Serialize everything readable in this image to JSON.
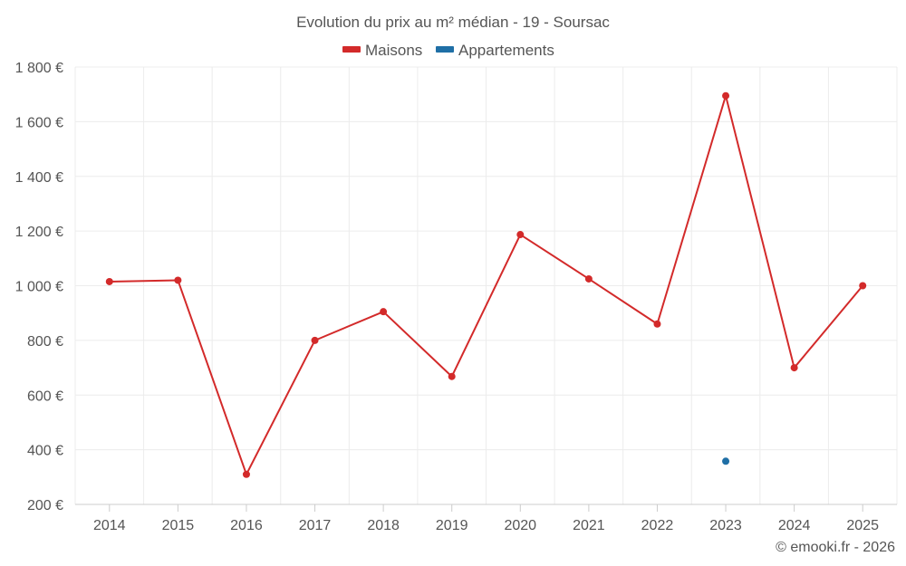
{
  "chart_data": {
    "type": "line",
    "title": "Evolution du prix au m² médian - 19 - Soursac",
    "categories": [
      "2014",
      "2015",
      "2016",
      "2017",
      "2018",
      "2019",
      "2020",
      "2021",
      "2022",
      "2023",
      "2024",
      "2025"
    ],
    "series": [
      {
        "name": "Maisons",
        "color": "#d32a2a",
        "values": [
          1015,
          1020,
          310,
          800,
          905,
          668,
          1187,
          1025,
          860,
          1695,
          700,
          1000
        ]
      },
      {
        "name": "Appartements",
        "color": "#1f6fa6",
        "values": [
          null,
          null,
          null,
          null,
          null,
          null,
          null,
          null,
          null,
          358,
          null,
          null
        ]
      }
    ],
    "ylim": [
      200,
      1800
    ],
    "yticks": [
      200,
      400,
      600,
      800,
      1000,
      1200,
      1400,
      1600,
      1800
    ],
    "ytick_labels": [
      "200 €",
      "400 €",
      "600 €",
      "800 €",
      "1 000 €",
      "1 200 €",
      "1 400 €",
      "1 600 €",
      "1 800 €"
    ],
    "legend_position": "top-center",
    "grid": true,
    "credit": "© emooki.fr - 2026"
  }
}
